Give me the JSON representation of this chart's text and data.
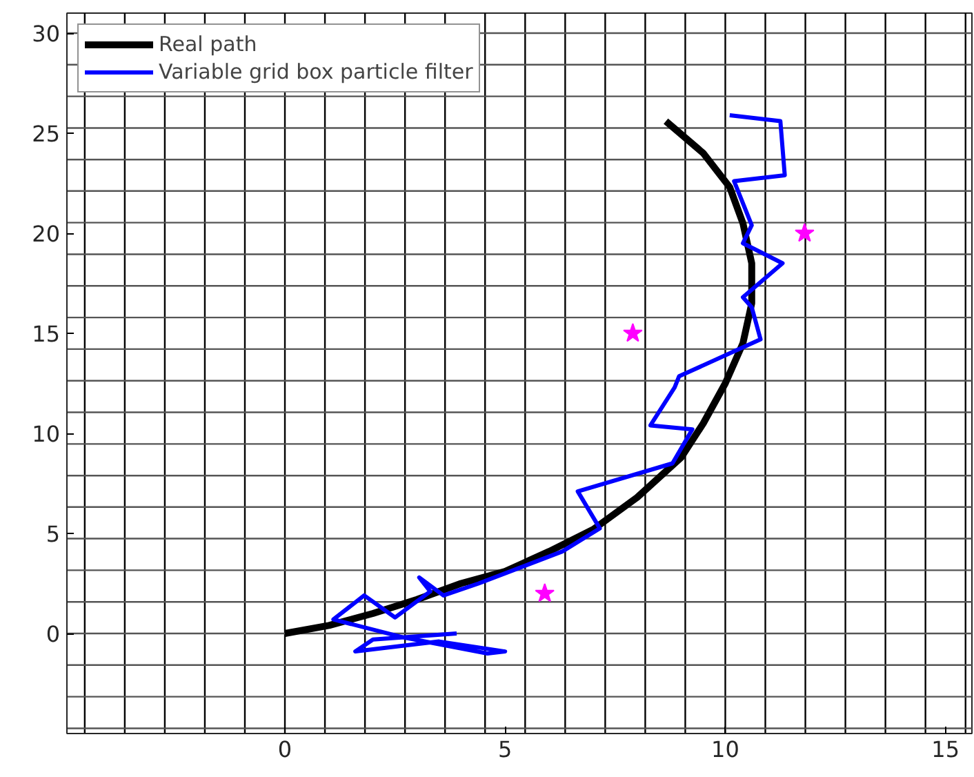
{
  "chart_data": {
    "type": "line",
    "xlim": [
      -4.95,
      15.6
    ],
    "ylim": [
      -5,
      31
    ],
    "xticks": [
      0,
      5,
      10,
      15
    ],
    "yticks": [
      0,
      5,
      10,
      15,
      20,
      25,
      30
    ],
    "grid": false,
    "legend": "top left",
    "series": [
      {
        "name": "Real path",
        "color": "#000000",
        "line_style": "solid",
        "marker": "none",
        "x": [
          0,
          1,
          2,
          3,
          4,
          5,
          6,
          7,
          8,
          9,
          9.5,
          10,
          10.4,
          10.6,
          10.6,
          10.4,
          10.1,
          9.5,
          8.65
        ],
        "values": [
          0,
          0.4,
          1,
          1.7,
          2.5,
          3.1,
          4.1,
          5.2,
          6.8,
          8.8,
          10.5,
          12.5,
          14.5,
          16.5,
          18.5,
          20.5,
          22.3,
          24,
          25.6
        ]
      },
      {
        "name": "Variable grid box particle filter",
        "color": "#0000ff",
        "line_style": "solid",
        "marker": "none",
        "x": [
          3.9,
          2.0,
          1.6,
          3.5,
          5.0,
          4.6,
          2.7,
          1.1,
          1.8,
          2.5,
          3.3,
          3.05,
          3.6,
          4.4,
          6.3,
          7.15,
          6.65,
          8.8,
          9.25,
          8.3,
          8.85,
          8.95,
          10.8,
          10.6,
          10.4,
          11.3,
          10.4,
          10.6,
          10.2,
          11.35,
          11.25,
          10.1
        ],
        "values": [
          0,
          -0.3,
          -0.9,
          -0.4,
          -0.9,
          -1.0,
          -0.2,
          0.7,
          1.9,
          0.8,
          2.1,
          2.8,
          1.9,
          2.5,
          4.1,
          5.25,
          7.1,
          8.5,
          10.2,
          10.4,
          12.3,
          12.85,
          14.7,
          16.3,
          16.8,
          18.5,
          19.5,
          20.4,
          22.6,
          22.9,
          25.6,
          25.9
        ]
      },
      {
        "type": "scatter",
        "color": "#ff00ff",
        "marker": "star",
        "x": [
          5.9,
          7.9,
          11.8
        ],
        "values": [
          2,
          15,
          20
        ]
      }
    ],
    "ref_lines": [
      {
        "axis": "x",
        "value": -4.545
      },
      {
        "axis": "x",
        "value": -3.636
      },
      {
        "axis": "x",
        "value": -2.727
      },
      {
        "axis": "x",
        "value": -1.818
      },
      {
        "axis": "x",
        "value": -0.909
      },
      {
        "axis": "x",
        "value": 0
      },
      {
        "axis": "x",
        "value": 0.909
      },
      {
        "axis": "x",
        "value": 1.818
      },
      {
        "axis": "x",
        "value": 2.727
      },
      {
        "axis": "x",
        "value": 3.636
      },
      {
        "axis": "x",
        "value": 4.545
      },
      {
        "axis": "x",
        "value": 5.455
      },
      {
        "axis": "x",
        "value": 6.364
      },
      {
        "axis": "x",
        "value": 7.273
      },
      {
        "axis": "x",
        "value": 8.182
      },
      {
        "axis": "x",
        "value": 9.091
      },
      {
        "axis": "x",
        "value": 10
      },
      {
        "axis": "x",
        "value": 10.909
      },
      {
        "axis": "x",
        "value": 11.818
      },
      {
        "axis": "x",
        "value": 12.727
      },
      {
        "axis": "x",
        "value": 13.636
      },
      {
        "axis": "x",
        "value": 14.545
      },
      {
        "axis": "x",
        "value": 15.455
      },
      {
        "axis": "y",
        "value": -4.74
      },
      {
        "axis": "y",
        "value": -3.16
      },
      {
        "axis": "y",
        "value": -1.58
      },
      {
        "axis": "y",
        "value": 0
      },
      {
        "axis": "y",
        "value": 1.58
      },
      {
        "axis": "y",
        "value": 3.16
      },
      {
        "axis": "y",
        "value": 4.74
      },
      {
        "axis": "y",
        "value": 6.32
      },
      {
        "axis": "y",
        "value": 7.89
      },
      {
        "axis": "y",
        "value": 9.47
      },
      {
        "axis": "y",
        "value": 11.05
      },
      {
        "axis": "y",
        "value": 12.63
      },
      {
        "axis": "y",
        "value": 14.21
      },
      {
        "axis": "y",
        "value": 15.79
      },
      {
        "axis": "y",
        "value": 17.37
      },
      {
        "axis": "y",
        "value": 18.95
      },
      {
        "axis": "y",
        "value": 20.53
      },
      {
        "axis": "y",
        "value": 22.11
      },
      {
        "axis": "y",
        "value": 23.68
      },
      {
        "axis": "y",
        "value": 25.26
      },
      {
        "axis": "y",
        "value": 26.84
      },
      {
        "axis": "y",
        "value": 28.42
      },
      {
        "axis": "y",
        "value": 30
      }
    ]
  }
}
